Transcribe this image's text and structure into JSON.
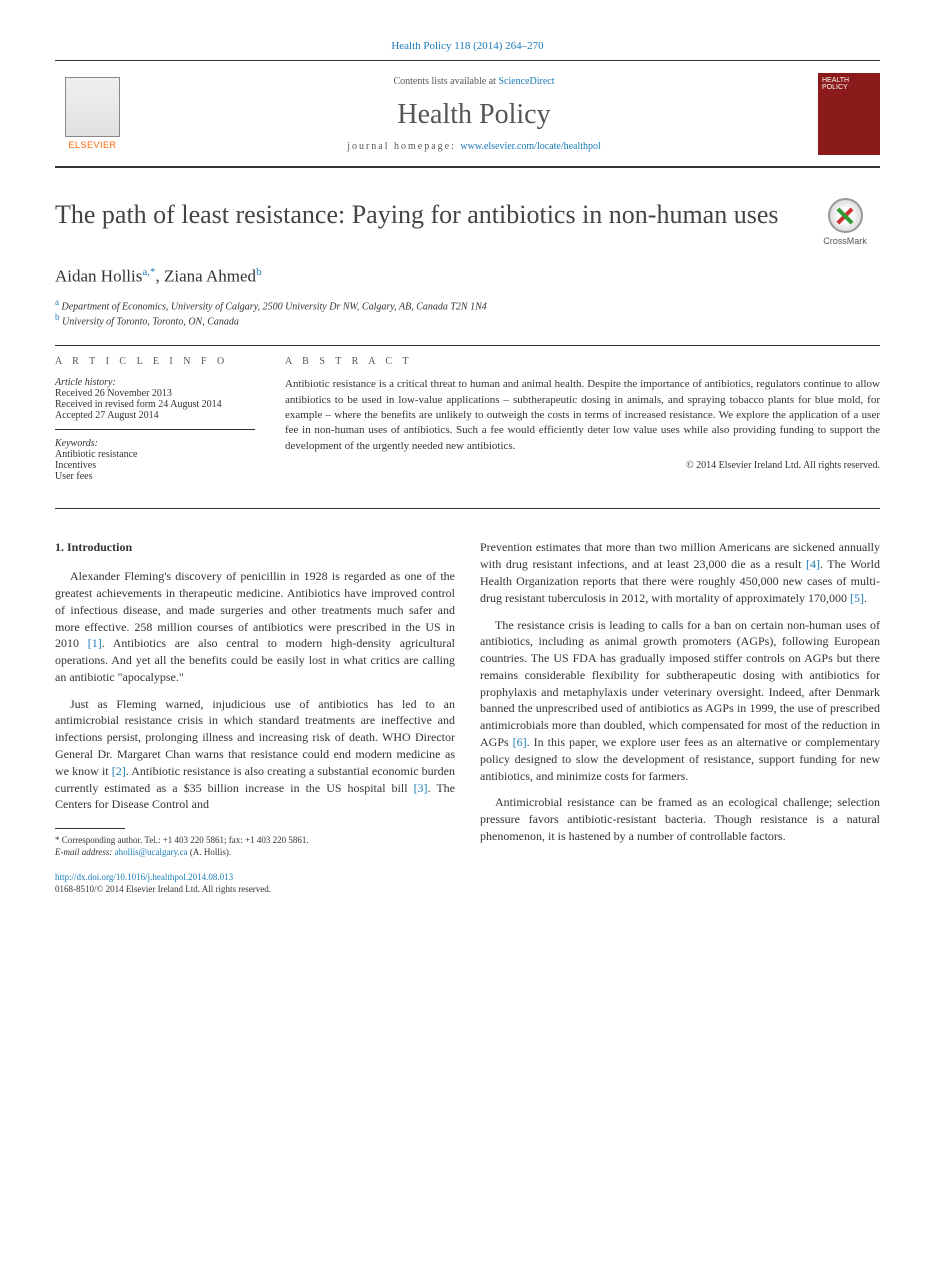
{
  "header": {
    "citation": "Health Policy 118 (2014) 264–270",
    "contents_prefix": "Contents lists available at ",
    "contents_link": "ScienceDirect",
    "journal_name": "Health Policy",
    "homepage_prefix": "journal homepage: ",
    "homepage_link": "www.elsevier.com/locate/healthpol",
    "elsevier": "ELSEVIER",
    "cover_text": "HEALTH POLICY"
  },
  "crossmark": "CrossMark",
  "title": "The path of least resistance: Paying for antibiotics in non-human uses",
  "authors": [
    {
      "name": "Aidan Hollis",
      "marks": "a,*"
    },
    {
      "name": "Ziana Ahmed",
      "marks": "b"
    }
  ],
  "affiliations": [
    {
      "mark": "a",
      "text": "Department of Economics, University of Calgary, 2500 University Dr NW, Calgary, AB, Canada T2N 1N4"
    },
    {
      "mark": "b",
      "text": "University of Toronto, Toronto, ON, Canada"
    }
  ],
  "info": {
    "heading": "A R T I C L E   I N F O",
    "history_head": "Article history:",
    "received": "Received 26 November 2013",
    "revised": "Received in revised form 24 August 2014",
    "accepted": "Accepted 27 August 2014",
    "keywords_head": "Keywords:",
    "keywords": [
      "Antibiotic resistance",
      "Incentives",
      "User fees"
    ]
  },
  "abstract": {
    "heading": "A B S T R A C T",
    "text": "Antibiotic resistance is a critical threat to human and animal health. Despite the importance of antibiotics, regulators continue to allow antibiotics to be used in low-value applications – subtherapeutic dosing in animals, and spraying tobacco plants for blue mold, for example – where the benefits are unlikely to outweigh the costs in terms of increased resistance. We explore the application of a user fee in non-human uses of antibiotics. Such a fee would efficiently deter low value uses while also providing funding to support the development of the urgently needed new antibiotics.",
    "copyright": "© 2014 Elsevier Ireland Ltd. All rights reserved."
  },
  "body": {
    "section": "1.  Introduction",
    "col1": [
      "Alexander Fleming's discovery of penicillin in 1928 is regarded as one of the greatest achievements in therapeutic medicine. Antibiotics have improved control of infectious disease, and made surgeries and other treatments much safer and more effective. 258 million courses of antibiotics were prescribed in the US in 2010 [1]. Antibiotics are also central to modern high-density agricultural operations. And yet all the benefits could be easily lost in what critics are calling an antibiotic \"apocalypse.\"",
      "Just as Fleming warned, injudicious use of antibiotics has led to an antimicrobial resistance crisis in which standard treatments are ineffective and infections persist, prolonging illness and increasing risk of death. WHO Director General Dr. Margaret Chan warns that resistance could end modern medicine as we know it [2]. Antibiotic resistance is also creating a substantial economic burden currently estimated as a $35 billion increase in the US hospital bill [3]. The Centers for Disease Control and"
    ],
    "col2": [
      "Prevention estimates that more than two million Americans are sickened annually with drug resistant infections, and at least 23,000 die as a result [4]. The World Health Organization reports that there were roughly 450,000 new cases of multi-drug resistant tuberculosis in 2012, with mortality of approximately 170,000 [5].",
      "The resistance crisis is leading to calls for a ban on certain non-human uses of antibiotics, including as animal growth promoters (AGPs), following European countries. The US FDA has gradually imposed stiffer controls on AGPs but there remains considerable flexibility for subtherapeutic dosing with antibiotics for prophylaxis and metaphylaxis under veterinary oversight. Indeed, after Denmark banned the unprescribed used of antibiotics as AGPs in 1999, the use of prescribed antimicrobials more than doubled, which compensated for most of the reduction in AGPs [6]. In this paper, we explore user fees as an alternative or complementary policy designed to slow the development of resistance, support funding for new antibiotics, and minimize costs for farmers.",
      "Antimicrobial resistance can be framed as an ecological challenge; selection pressure favors antibiotic-resistant bacteria. Though resistance is a natural phenomenon, it is hastened by a number of controllable factors."
    ],
    "refs": {
      "1": "[1]",
      "2": "[2]",
      "3": "[3]",
      "4": "[4]",
      "5": "[5]",
      "6": "[6]"
    }
  },
  "footnote": {
    "corr": "* Corresponding author. Tel.: +1 403 220 5861; fax: +1 403 220 5861.",
    "email_label": "E-mail address: ",
    "email": "ahollis@ucalgary.ca",
    "email_suffix": " (A. Hollis)."
  },
  "doi": {
    "link": "http://dx.doi.org/10.1016/j.healthpol.2014.08.013",
    "issn": "0168-8510/© 2014 Elsevier Ireland Ltd. All rights reserved."
  }
}
